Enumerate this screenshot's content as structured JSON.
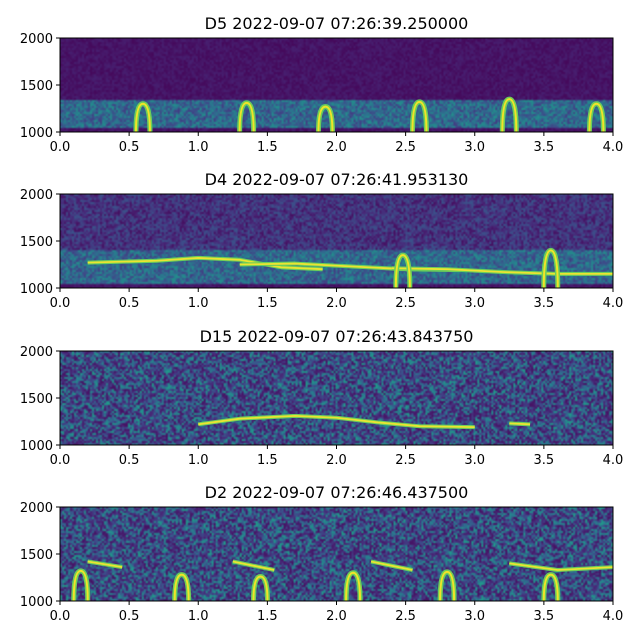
{
  "chart_data": [
    {
      "type": "heatmap",
      "title": "D5 2022-09-07 07:26:39.250000",
      "x_ticks": [
        "0.0",
        "0.5",
        "1.0",
        "1.5",
        "2.0",
        "2.5",
        "3.0",
        "3.5",
        "4.0"
      ],
      "y_ticks": [
        "1000",
        "1500",
        "2000"
      ],
      "xlim": [
        0,
        4
      ],
      "ylim": [
        1000,
        2000
      ],
      "colormap": "viridis",
      "band": [
        1050,
        1330
      ],
      "calls": [
        {
          "kind": "arch",
          "t": 0.6,
          "f": 1300
        },
        {
          "kind": "arch",
          "t": 1.35,
          "f": 1310
        },
        {
          "kind": "arch",
          "t": 1.92,
          "f": 1270
        },
        {
          "kind": "arch",
          "t": 2.6,
          "f": 1320
        },
        {
          "kind": "arch",
          "t": 3.25,
          "f": 1350
        },
        {
          "kind": "arch",
          "t": 3.88,
          "f": 1300
        }
      ]
    },
    {
      "type": "heatmap",
      "title": "D4 2022-09-07 07:26:41.953130",
      "x_ticks": [
        "0.0",
        "0.5",
        "1.0",
        "1.5",
        "2.0",
        "2.5",
        "3.0",
        "3.5",
        "4.0"
      ],
      "y_ticks": [
        "1000",
        "1500",
        "2000"
      ],
      "xlim": [
        0,
        4
      ],
      "ylim": [
        1000,
        2000
      ],
      "colormap": "viridis",
      "band": [
        1050,
        1400
      ],
      "calls": [
        {
          "kind": "curve",
          "points": [
            [
              0.2,
              1270
            ],
            [
              0.7,
              1290
            ],
            [
              1.0,
              1320
            ],
            [
              1.3,
              1300
            ],
            [
              1.6,
              1220
            ],
            [
              1.9,
              1200
            ]
          ]
        },
        {
          "kind": "curve",
          "points": [
            [
              1.3,
              1250
            ],
            [
              1.7,
              1260
            ],
            [
              2.1,
              1230
            ],
            [
              2.5,
              1200
            ],
            [
              2.9,
              1190
            ]
          ]
        },
        {
          "kind": "curve",
          "points": [
            [
              2.4,
              1210
            ],
            [
              2.8,
              1200
            ],
            [
              3.2,
              1170
            ],
            [
              3.6,
              1150
            ],
            [
              4.0,
              1150
            ]
          ]
        },
        {
          "kind": "arch",
          "t": 2.48,
          "f": 1350
        },
        {
          "kind": "arch",
          "t": 3.55,
          "f": 1400
        }
      ]
    },
    {
      "type": "heatmap",
      "title": "D15 2022-09-07 07:26:43.843750",
      "x_ticks": [
        "0.0",
        "0.5",
        "1.0",
        "1.5",
        "2.0",
        "2.5",
        "3.0",
        "3.5",
        "4.0"
      ],
      "y_ticks": [
        "1000",
        "1500",
        "2000"
      ],
      "xlim": [
        0,
        4
      ],
      "ylim": [
        1000,
        2000
      ],
      "colormap": "viridis",
      "calls": [
        {
          "kind": "curve",
          "points": [
            [
              1.0,
              1220
            ],
            [
              1.3,
              1280
            ],
            [
              1.7,
              1310
            ],
            [
              2.0,
              1290
            ],
            [
              2.3,
              1240
            ],
            [
              2.6,
              1200
            ],
            [
              3.0,
              1190
            ]
          ]
        },
        {
          "kind": "curve",
          "points": [
            [
              3.25,
              1230
            ],
            [
              3.4,
              1220
            ]
          ]
        }
      ]
    },
    {
      "type": "heatmap",
      "title": "D2 2022-09-07 07:26:46.437500",
      "x_ticks": [
        "0.0",
        "0.5",
        "1.0",
        "1.5",
        "2.0",
        "2.5",
        "3.0",
        "3.5",
        "4.0"
      ],
      "y_ticks": [
        "1000",
        "1500",
        "2000"
      ],
      "xlim": [
        0,
        4
      ],
      "ylim": [
        1000,
        2000
      ],
      "colormap": "viridis",
      "calls": [
        {
          "kind": "arch",
          "t": 0.15,
          "f": 1320
        },
        {
          "kind": "arch",
          "t": 0.88,
          "f": 1280
        },
        {
          "kind": "arch",
          "t": 1.45,
          "f": 1260
        },
        {
          "kind": "arch",
          "t": 2.12,
          "f": 1300
        },
        {
          "kind": "arch",
          "t": 2.8,
          "f": 1310
        },
        {
          "kind": "arch",
          "t": 3.55,
          "f": 1280
        },
        {
          "kind": "curve",
          "points": [
            [
              0.2,
              1420
            ],
            [
              0.45,
              1360
            ]
          ]
        },
        {
          "kind": "curve",
          "points": [
            [
              1.25,
              1420
            ],
            [
              1.55,
              1330
            ]
          ]
        },
        {
          "kind": "curve",
          "points": [
            [
              2.25,
              1420
            ],
            [
              2.55,
              1330
            ]
          ]
        },
        {
          "kind": "curve",
          "points": [
            [
              3.25,
              1400
            ],
            [
              3.6,
              1330
            ],
            [
              4.0,
              1360
            ]
          ]
        }
      ]
    }
  ]
}
